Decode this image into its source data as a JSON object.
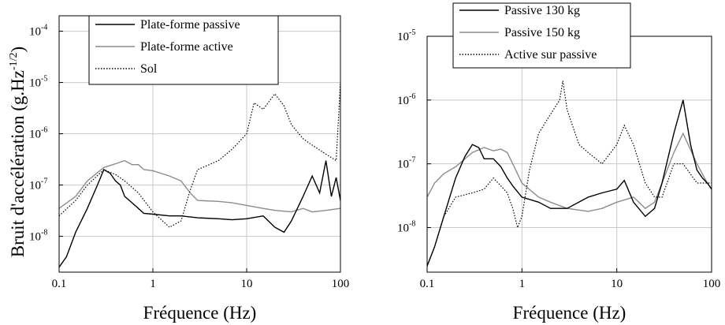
{
  "chart_data": [
    {
      "type": "line",
      "xlabel": "Fréquence (Hz)",
      "ylabel": "Bruit d'accélération (g.Hz",
      "ylabel_exp": "-1/2",
      "ylabel_close": ")",
      "xscale": "log",
      "yscale": "log",
      "xlim": [
        0.1,
        100
      ],
      "ylim": [
        2e-09,
        0.0002
      ],
      "xticks": [
        {
          "v": 0.1,
          "t": "0.1"
        },
        {
          "v": 1,
          "t": "1"
        },
        {
          "v": 10,
          "t": "10"
        },
        {
          "v": 100,
          "t": "100"
        }
      ],
      "yticks": [
        {
          "v": 1e-08,
          "e": "-8"
        },
        {
          "v": 1e-07,
          "e": "-7"
        },
        {
          "v": 1e-06,
          "e": "-6"
        },
        {
          "v": 1e-05,
          "e": "-5"
        },
        {
          "v": 0.0001,
          "e": "-4"
        }
      ],
      "tick_base": "10",
      "grid": true,
      "legend": "top-left",
      "series": [
        {
          "name": "Plate-forme passive",
          "color": "#000000",
          "style": "solid",
          "points": [
            [
              0.1,
              2.5e-09
            ],
            [
              0.12,
              4e-09
            ],
            [
              0.15,
              1.2e-08
            ],
            [
              0.2,
              3.5e-08
            ],
            [
              0.25,
              9e-08
            ],
            [
              0.3,
              2e-07
            ],
            [
              0.35,
              1.7e-07
            ],
            [
              0.4,
              1.2e-07
            ],
            [
              0.45,
              1e-07
            ],
            [
              0.5,
              6e-08
            ],
            [
              0.6,
              4.5e-08
            ],
            [
              0.7,
              3.5e-08
            ],
            [
              0.8,
              2.8e-08
            ],
            [
              1,
              2.7e-08
            ],
            [
              1.5,
              2.5e-08
            ],
            [
              2,
              2.5e-08
            ],
            [
              3,
              2.3e-08
            ],
            [
              5,
              2.2e-08
            ],
            [
              7,
              2.1e-08
            ],
            [
              10,
              2.2e-08
            ],
            [
              15,
              2.5e-08
            ],
            [
              20,
              1.5e-08
            ],
            [
              25,
              1.2e-08
            ],
            [
              30,
              2e-08
            ],
            [
              40,
              6e-08
            ],
            [
              50,
              1.5e-07
            ],
            [
              60,
              7e-08
            ],
            [
              70,
              3e-07
            ],
            [
              80,
              6e-08
            ],
            [
              90,
              1.4e-07
            ],
            [
              100,
              5e-08
            ]
          ]
        },
        {
          "name": "Plate-forme active",
          "color": "#8c8c8c",
          "style": "solid",
          "points": [
            [
              0.1,
              3.5e-08
            ],
            [
              0.15,
              6e-08
            ],
            [
              0.2,
              1.2e-07
            ],
            [
              0.3,
              2.2e-07
            ],
            [
              0.4,
              2.6e-07
            ],
            [
              0.5,
              3e-07
            ],
            [
              0.6,
              2.5e-07
            ],
            [
              0.7,
              2.5e-07
            ],
            [
              0.8,
              2e-07
            ],
            [
              1,
              1.9e-07
            ],
            [
              1.5,
              1.5e-07
            ],
            [
              2,
              1.2e-07
            ],
            [
              2.5,
              7e-08
            ],
            [
              3,
              5e-08
            ],
            [
              5,
              4.8e-08
            ],
            [
              7,
              4.5e-08
            ],
            [
              10,
              4e-08
            ],
            [
              15,
              3.5e-08
            ],
            [
              20,
              3.2e-08
            ],
            [
              30,
              3e-08
            ],
            [
              40,
              3.5e-08
            ],
            [
              50,
              3e-08
            ],
            [
              70,
              3.2e-08
            ],
            [
              100,
              3.5e-08
            ]
          ]
        },
        {
          "name": "Sol",
          "color": "#000000",
          "style": "dotted",
          "points": [
            [
              0.1,
              2.5e-08
            ],
            [
              0.15,
              5e-08
            ],
            [
              0.2,
              1e-07
            ],
            [
              0.3,
              2e-07
            ],
            [
              0.4,
              1.6e-07
            ],
            [
              0.5,
              1.2e-07
            ],
            [
              0.7,
              7e-08
            ],
            [
              1,
              3e-08
            ],
            [
              1.5,
              1.5e-08
            ],
            [
              2,
              2e-08
            ],
            [
              2.5,
              8e-08
            ],
            [
              3,
              2e-07
            ],
            [
              4,
              2.5e-07
            ],
            [
              5,
              3e-07
            ],
            [
              7,
              5e-07
            ],
            [
              10,
              1e-06
            ],
            [
              12,
              4e-06
            ],
            [
              15,
              3e-06
            ],
            [
              20,
              6e-06
            ],
            [
              25,
              3.5e-06
            ],
            [
              30,
              1.5e-06
            ],
            [
              40,
              8e-07
            ],
            [
              50,
              6e-07
            ],
            [
              70,
              4e-07
            ],
            [
              90,
              3e-07
            ],
            [
              100,
              1e-05
            ]
          ]
        }
      ]
    },
    {
      "type": "line",
      "xlabel": "Fréquence (Hz)",
      "xscale": "log",
      "yscale": "log",
      "xlim": [
        0.1,
        100
      ],
      "ylim": [
        2e-09,
        1e-05
      ],
      "xticks": [
        {
          "v": 0.1,
          "t": "0.1"
        },
        {
          "v": 1,
          "t": "1"
        },
        {
          "v": 10,
          "t": "10"
        },
        {
          "v": 100,
          "t": "100"
        }
      ],
      "yticks": [
        {
          "v": 1e-08,
          "e": "-8"
        },
        {
          "v": 1e-07,
          "e": "-7"
        },
        {
          "v": 1e-06,
          "e": "-6"
        },
        {
          "v": 1e-05,
          "e": "-5"
        }
      ],
      "tick_base": "10",
      "grid": true,
      "legend": "top",
      "series": [
        {
          "name": "Passive 130 kg",
          "color": "#000000",
          "style": "solid",
          "points": [
            [
              0.1,
              2.5e-09
            ],
            [
              0.12,
              5e-09
            ],
            [
              0.15,
              1.5e-08
            ],
            [
              0.2,
              6e-08
            ],
            [
              0.25,
              1.3e-07
            ],
            [
              0.3,
              2e-07
            ],
            [
              0.35,
              1.8e-07
            ],
            [
              0.4,
              1.2e-07
            ],
            [
              0.5,
              1.2e-07
            ],
            [
              0.6,
              9e-08
            ],
            [
              0.7,
              6e-08
            ],
            [
              0.8,
              4.5e-08
            ],
            [
              1,
              3e-08
            ],
            [
              1.5,
              2.5e-08
            ],
            [
              2,
              2e-08
            ],
            [
              3,
              2e-08
            ],
            [
              5,
              3e-08
            ],
            [
              7,
              3.5e-08
            ],
            [
              10,
              4e-08
            ],
            [
              12,
              5.5e-08
            ],
            [
              15,
              2.5e-08
            ],
            [
              20,
              1.5e-08
            ],
            [
              25,
              2e-08
            ],
            [
              30,
              5e-08
            ],
            [
              40,
              3e-07
            ],
            [
              50,
              1e-06
            ],
            [
              60,
              2e-07
            ],
            [
              70,
              8e-08
            ],
            [
              80,
              6e-08
            ],
            [
              90,
              5e-08
            ],
            [
              100,
              4e-08
            ]
          ]
        },
        {
          "name": "Passive 150 kg",
          "color": "#8c8c8c",
          "style": "solid",
          "points": [
            [
              0.1,
              3e-08
            ],
            [
              0.12,
              5e-08
            ],
            [
              0.15,
              7e-08
            ],
            [
              0.2,
              9e-08
            ],
            [
              0.3,
              1.5e-07
            ],
            [
              0.4,
              1.8e-07
            ],
            [
              0.5,
              1.6e-07
            ],
            [
              0.6,
              1.7e-07
            ],
            [
              0.7,
              1.5e-07
            ],
            [
              0.8,
              1e-07
            ],
            [
              1,
              5e-08
            ],
            [
              1.5,
              3e-08
            ],
            [
              2,
              2.5e-08
            ],
            [
              3,
              2e-08
            ],
            [
              5,
              1.8e-08
            ],
            [
              7,
              2e-08
            ],
            [
              10,
              2.5e-08
            ],
            [
              15,
              3e-08
            ],
            [
              20,
              2e-08
            ],
            [
              25,
              2.5e-08
            ],
            [
              30,
              5e-08
            ],
            [
              40,
              1.5e-07
            ],
            [
              50,
              3e-07
            ],
            [
              70,
              1e-07
            ],
            [
              90,
              5e-08
            ],
            [
              100,
              4e-08
            ]
          ]
        },
        {
          "name": "Active sur passive",
          "color": "#000000",
          "style": "dotted",
          "points": [
            [
              0.1,
              2.5e-09
            ],
            [
              0.12,
              5e-09
            ],
            [
              0.15,
              1.5e-08
            ],
            [
              0.2,
              3e-08
            ],
            [
              0.3,
              3.5e-08
            ],
            [
              0.4,
              4e-08
            ],
            [
              0.5,
              6e-08
            ],
            [
              0.6,
              4.5e-08
            ],
            [
              0.7,
              3.5e-08
            ],
            [
              0.8,
              2e-08
            ],
            [
              0.9,
              1e-08
            ],
            [
              1,
              1.5e-08
            ],
            [
              1.2,
              8e-08
            ],
            [
              1.5,
              3e-07
            ],
            [
              2,
              6e-07
            ],
            [
              2.5,
              1e-06
            ],
            [
              2.7,
              2e-06
            ],
            [
              3,
              7e-07
            ],
            [
              4,
              2e-07
            ],
            [
              5,
              1.5e-07
            ],
            [
              7,
              1e-07
            ],
            [
              10,
              2e-07
            ],
            [
              12,
              4e-07
            ],
            [
              15,
              2e-07
            ],
            [
              20,
              5e-08
            ],
            [
              25,
              3e-08
            ],
            [
              30,
              3e-08
            ],
            [
              40,
              1e-07
            ],
            [
              50,
              1e-07
            ],
            [
              70,
              5e-08
            ],
            [
              100,
              5e-08
            ]
          ]
        }
      ]
    }
  ]
}
